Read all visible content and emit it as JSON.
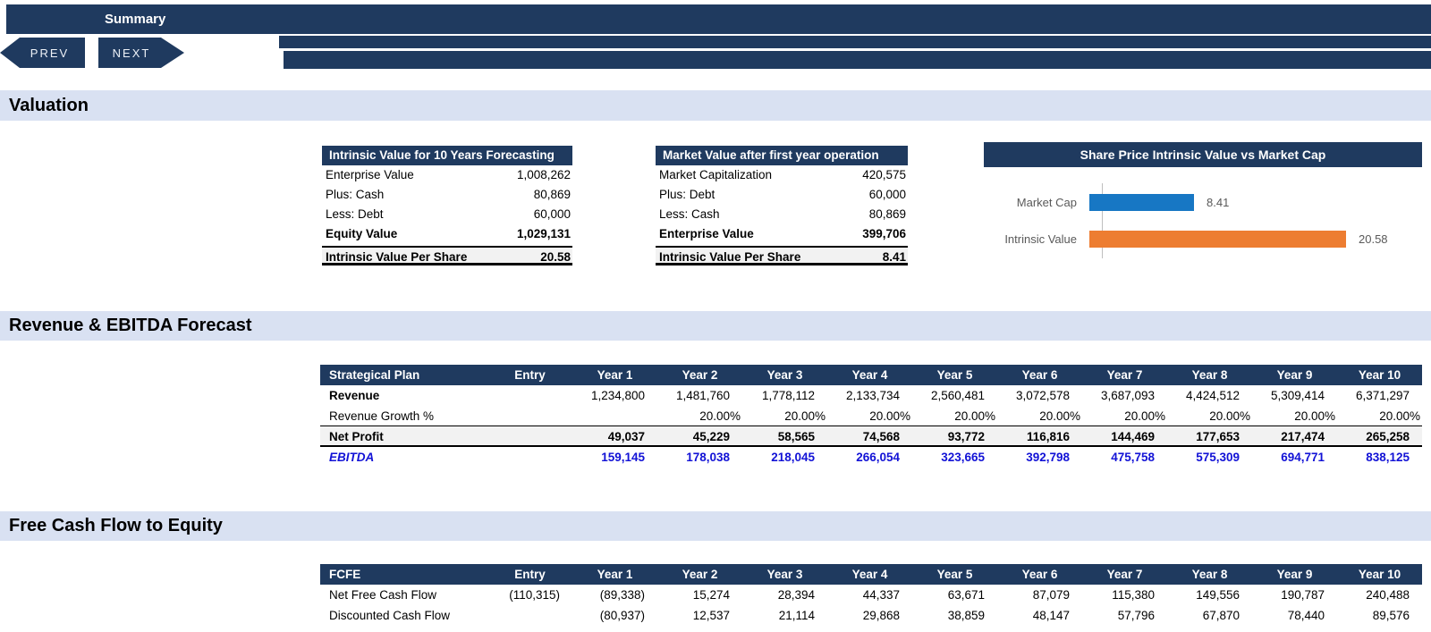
{
  "colors": {
    "navy": "#1F3A5F",
    "section_band": "#D9E1F2",
    "subtotal_bg": "#F2F2F2",
    "ebitda_text": "#1212D6",
    "chart_blue": "#1777C4",
    "chart_orange": "#ED7D31",
    "gray_text": "#595959"
  },
  "nav": {
    "sheet_tab": "Summary",
    "prev_label": "PREV",
    "next_label": "NEXT"
  },
  "valuation": {
    "heading": "Valuation",
    "intrinsic_table": {
      "title": "Intrinsic Value for 10 Years Forecasting",
      "rows": [
        {
          "label": "Enterprise Value",
          "value": "1,008,262",
          "bold": false
        },
        {
          "label": "Plus: Cash",
          "value": "80,869",
          "bold": false
        },
        {
          "label": "Less: Debt",
          "value": "60,000",
          "bold": false
        },
        {
          "label": "Equity Value",
          "value": "1,029,131",
          "bold": true
        }
      ],
      "footer": {
        "label": "Intrinsic Value Per Share",
        "value": "20.58"
      }
    },
    "market_table": {
      "title": "Market Value after first year operation",
      "rows": [
        {
          "label": "Market Capitalization",
          "value": "420,575",
          "bold": false
        },
        {
          "label": "Plus: Debt",
          "value": "60,000",
          "bold": false
        },
        {
          "label": "Less: Cash",
          "value": "80,869",
          "bold": false
        },
        {
          "label": "Enterprise Value",
          "value": "399,706",
          "bold": true
        }
      ],
      "footer": {
        "label": "Intrinsic Value Per Share",
        "value": "8.41"
      }
    }
  },
  "chart_data": {
    "type": "bar",
    "orientation": "horizontal",
    "title": "Share Price Intrinsic Value vs Market Cap",
    "categories": [
      "Market Cap",
      "Intrinsic Value"
    ],
    "values": [
      8.41,
      20.58
    ],
    "value_labels": [
      "8.41",
      "20.58"
    ],
    "colors": [
      "#1777C4",
      "#ED7D31"
    ],
    "xlim": [
      0,
      21
    ],
    "grid": false,
    "legend": false
  },
  "revenue_forecast": {
    "heading": "Revenue & EBITDA Forecast",
    "table": {
      "columns": [
        "Strategical Plan",
        "Entry",
        "Year 1",
        "Year 2",
        "Year 3",
        "Year 4",
        "Year 5",
        "Year 6",
        "Year 7",
        "Year 8",
        "Year 9",
        "Year 10"
      ],
      "rows": [
        {
          "label": "Revenue",
          "style": "revenue",
          "entry": "",
          "values": [
            "1,234,800",
            "1,481,760",
            "1,778,112",
            "2,133,734",
            "2,560,481",
            "3,072,578",
            "3,687,093",
            "4,424,512",
            "5,309,414",
            "6,371,297"
          ]
        },
        {
          "label": "Revenue Growth %",
          "style": "growth",
          "entry": "",
          "values": [
            "",
            "20.00%",
            "20.00%",
            "20.00%",
            "20.00%",
            "20.00%",
            "20.00%",
            "20.00%",
            "20.00%",
            "20.00%"
          ]
        },
        {
          "label": "Net Profit",
          "style": "netprofit",
          "entry": "",
          "values": [
            "49,037",
            "45,229",
            "58,565",
            "74,568",
            "93,772",
            "116,816",
            "144,469",
            "177,653",
            "217,474",
            "265,258"
          ]
        },
        {
          "label": "EBITDA",
          "style": "ebitda",
          "entry": "",
          "values": [
            "159,145",
            "178,038",
            "218,045",
            "266,054",
            "323,665",
            "392,798",
            "475,758",
            "575,309",
            "694,771",
            "838,125"
          ]
        }
      ]
    }
  },
  "fcfe": {
    "heading": "Free Cash Flow to Equity",
    "table": {
      "columns": [
        "FCFE",
        "Entry",
        "Year 1",
        "Year 2",
        "Year 3",
        "Year 4",
        "Year 5",
        "Year 6",
        "Year 7",
        "Year 8",
        "Year 9",
        "Year 10"
      ],
      "rows": [
        {
          "label": "Net Free Cash Flow",
          "style": "plain",
          "entry": "(110,315)",
          "values": [
            "(89,338)",
            "15,274",
            "28,394",
            "44,337",
            "63,671",
            "87,079",
            "115,380",
            "149,556",
            "190,787",
            "240,488"
          ]
        },
        {
          "label": "Discounted Cash Flow",
          "style": "plain",
          "entry": "",
          "values": [
            "(80,937)",
            "12,537",
            "21,114",
            "29,868",
            "38,859",
            "48,147",
            "57,796",
            "67,870",
            "78,440",
            "89,576"
          ]
        }
      ]
    }
  }
}
